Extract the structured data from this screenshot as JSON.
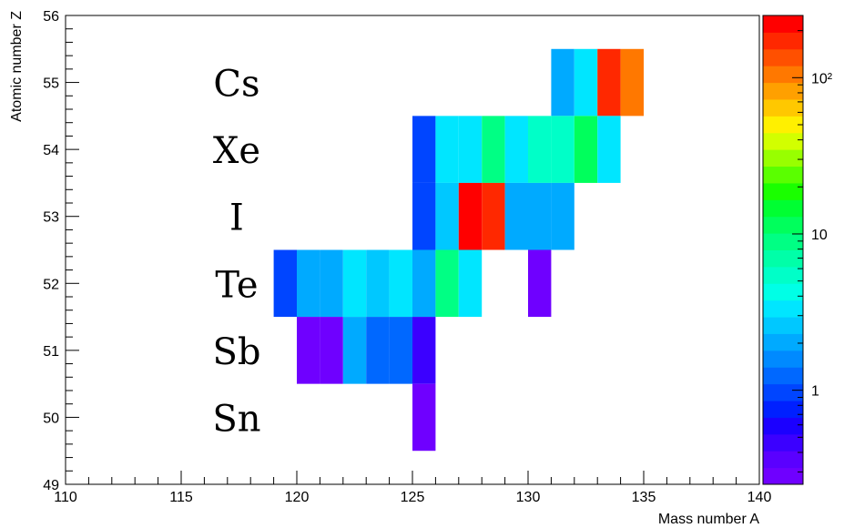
{
  "chart_data": {
    "type": "heatmap",
    "xlabel": "Mass number A",
    "ylabel": "Atomic number Z",
    "xlim": [
      110,
      140
    ],
    "ylim": [
      49,
      56
    ],
    "x_tick_labels": [
      "110",
      "115",
      "120",
      "125",
      "130",
      "135",
      "140"
    ],
    "y_tick_labels": [
      "49",
      "50",
      "51",
      "52",
      "53",
      "54",
      "55",
      "56"
    ],
    "colorbar": {
      "scale": "log",
      "range": [
        0.25,
        250
      ],
      "tick_labels": [
        {
          "value": 1,
          "label": "1"
        },
        {
          "value": 10,
          "label": "10"
        },
        {
          "value": 100,
          "label": "10²"
        }
      ],
      "colors": [
        "#6f00ff",
        "#5a00ff",
        "#3b00ff",
        "#1b00ff",
        "#0020ff",
        "#0045ff",
        "#0068ff",
        "#008aff",
        "#00aaff",
        "#00c8ff",
        "#00e6ff",
        "#00ffe6",
        "#00ffc8",
        "#00ffa8",
        "#00ff84",
        "#00ff5c",
        "#00ff32",
        "#1aff00",
        "#5aff00",
        "#98ff00",
        "#d2ff00",
        "#fff000",
        "#ffc800",
        "#ffa000",
        "#ff7800",
        "#ff5000",
        "#ff2800",
        "#ff0000"
      ]
    },
    "element_labels": [
      {
        "z": 55,
        "label": "Cs"
      },
      {
        "z": 54,
        "label": "Xe"
      },
      {
        "z": 53,
        "label": "I"
      },
      {
        "z": 52,
        "label": "Te"
      },
      {
        "z": 51,
        "label": "Sb"
      },
      {
        "z": 50,
        "label": "Sn"
      }
    ],
    "cells": [
      {
        "a": 131,
        "z": 55,
        "value": 1.8
      },
      {
        "a": 132,
        "z": 55,
        "value": 3.5
      },
      {
        "a": 133,
        "z": 55,
        "value": 180
      },
      {
        "a": 134,
        "z": 55,
        "value": 100
      },
      {
        "a": 125,
        "z": 54,
        "value": 0.9
      },
      {
        "a": 126,
        "z": 54,
        "value": 3.5
      },
      {
        "a": 127,
        "z": 54,
        "value": 3.5
      },
      {
        "a": 128,
        "z": 54,
        "value": 8
      },
      {
        "a": 129,
        "z": 54,
        "value": 3.5
      },
      {
        "a": 130,
        "z": 54,
        "value": 5
      },
      {
        "a": 131,
        "z": 54,
        "value": 5
      },
      {
        "a": 132,
        "z": 54,
        "value": 12
      },
      {
        "a": 133,
        "z": 54,
        "value": 3.5
      },
      {
        "a": 125,
        "z": 53,
        "value": 0.9
      },
      {
        "a": 126,
        "z": 53,
        "value": 2.5
      },
      {
        "a": 127,
        "z": 53,
        "value": 220
      },
      {
        "a": 128,
        "z": 53,
        "value": 180
      },
      {
        "a": 129,
        "z": 53,
        "value": 1.8
      },
      {
        "a": 130,
        "z": 53,
        "value": 1.8
      },
      {
        "a": 131,
        "z": 53,
        "value": 1.8
      },
      {
        "a": 119,
        "z": 52,
        "value": 0.9
      },
      {
        "a": 120,
        "z": 52,
        "value": 1.8
      },
      {
        "a": 121,
        "z": 52,
        "value": 1.8
      },
      {
        "a": 122,
        "z": 52,
        "value": 3.5
      },
      {
        "a": 123,
        "z": 52,
        "value": 2.5
      },
      {
        "a": 124,
        "z": 52,
        "value": 3.5
      },
      {
        "a": 125,
        "z": 52,
        "value": 2.2
      },
      {
        "a": 126,
        "z": 52,
        "value": 10
      },
      {
        "a": 127,
        "z": 52,
        "value": 3.5
      },
      {
        "a": 130,
        "z": 52,
        "value": 0.3
      },
      {
        "a": 120,
        "z": 51,
        "value": 0.3
      },
      {
        "a": 121,
        "z": 51,
        "value": 0.3
      },
      {
        "a": 122,
        "z": 51,
        "value": 1.8
      },
      {
        "a": 123,
        "z": 51,
        "value": 1.3
      },
      {
        "a": 124,
        "z": 51,
        "value": 1.3
      },
      {
        "a": 125,
        "z": 51,
        "value": 0.5
      },
      {
        "a": 125,
        "z": 50,
        "value": 0.3
      }
    ]
  }
}
